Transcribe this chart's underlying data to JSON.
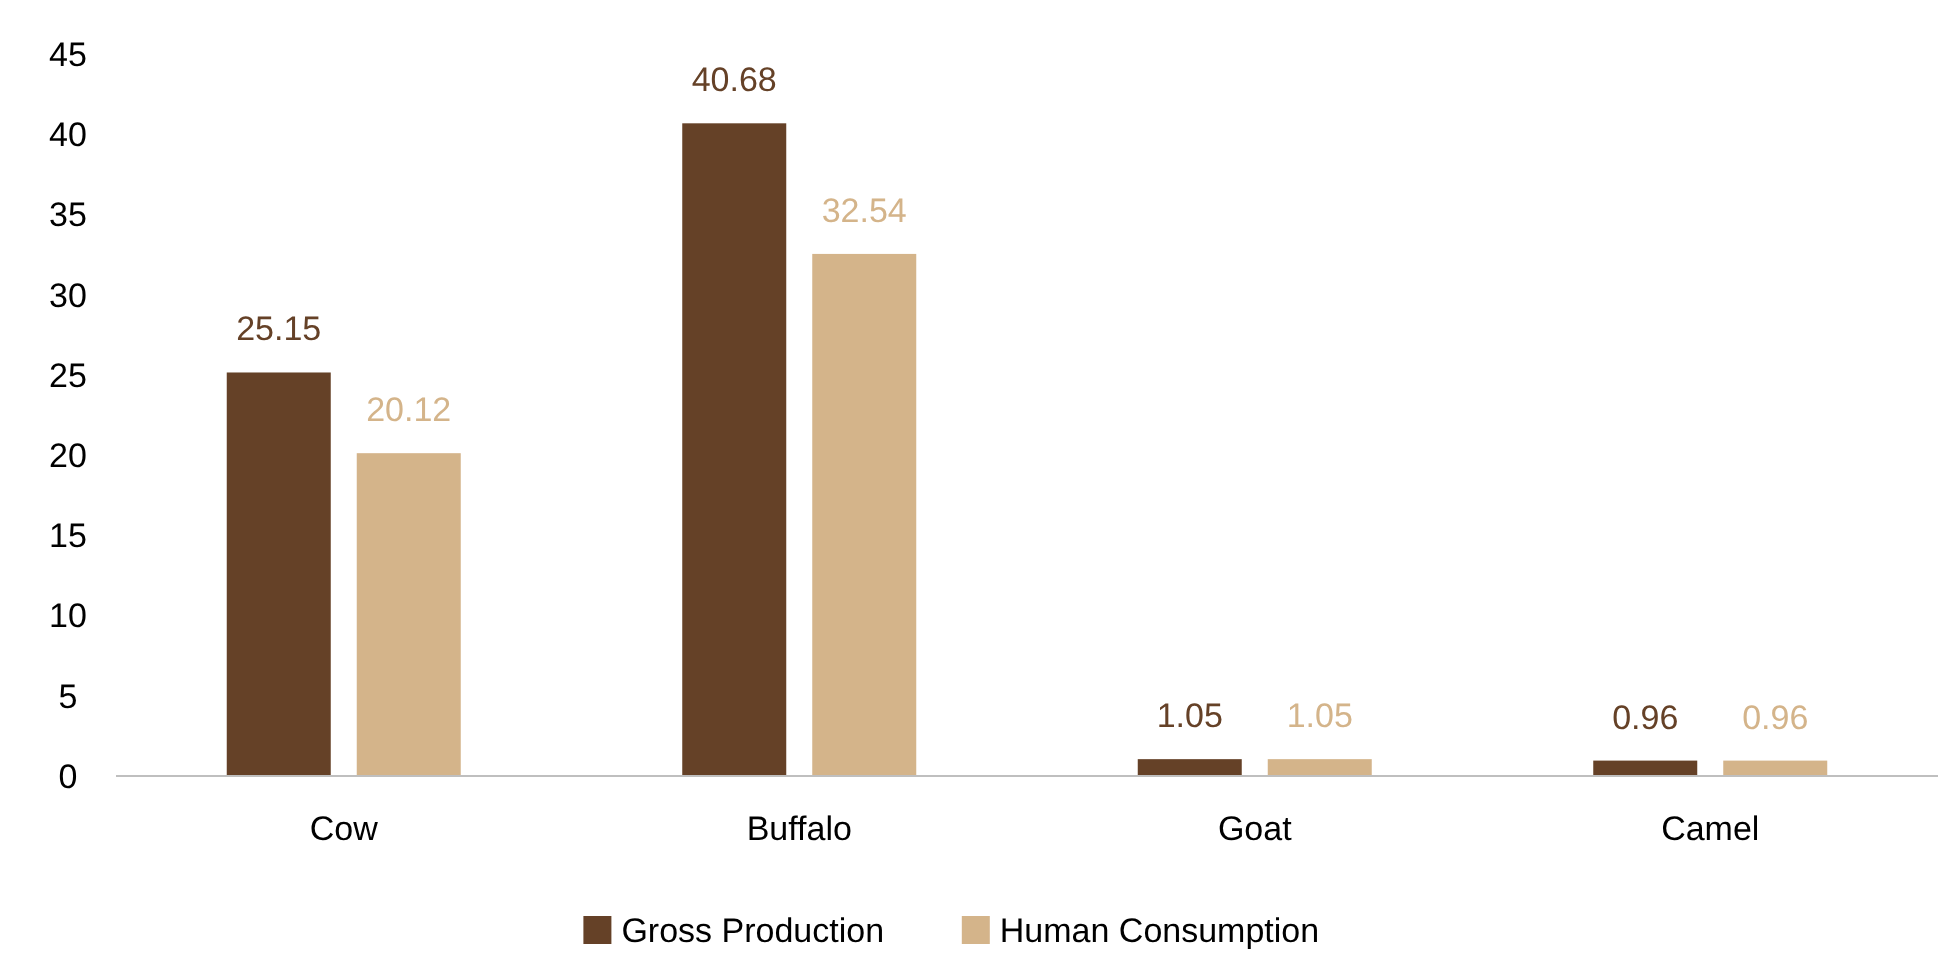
{
  "chart_data": {
    "type": "bar",
    "categories": [
      "Cow",
      "Buffalo",
      "Goat",
      "Camel"
    ],
    "series": [
      {
        "name": "Gross Production",
        "color": "#654127",
        "values": [
          25.15,
          40.68,
          1.05,
          0.96
        ]
      },
      {
        "name": "Human Consumption",
        "color": "#d4b48a",
        "values": [
          20.12,
          32.54,
          1.05,
          0.96
        ]
      }
    ],
    "ylim": [
      0,
      45
    ],
    "yticks": [
      0,
      5,
      10,
      15,
      20,
      25,
      30,
      35,
      40,
      45
    ],
    "grid": false,
    "legend": "bottom",
    "data_labels": true
  }
}
